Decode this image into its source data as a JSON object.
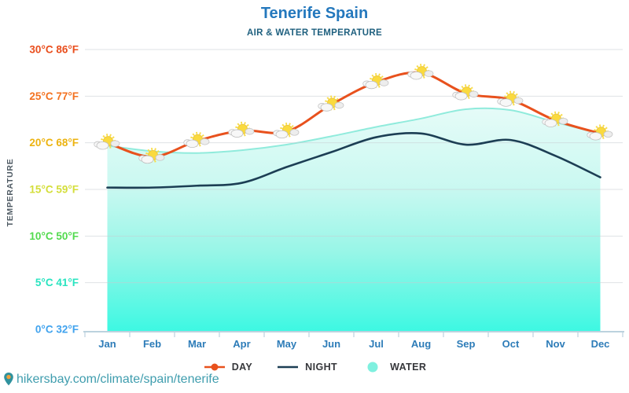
{
  "header": {
    "title": "Tenerife Spain",
    "subtitle": "AIR & WATER TEMPERATURE"
  },
  "y_axis": {
    "title": "TEMPERATURE"
  },
  "legend": {
    "items": [
      {
        "label": "DAY",
        "marker": "line-dot",
        "color": "#e8511d"
      },
      {
        "label": "NIGHT",
        "marker": "line",
        "color": "#1c3e54"
      },
      {
        "label": "WATER",
        "marker": "dot",
        "color": "#7ff0df"
      }
    ]
  },
  "footer": {
    "url": "hikersbay.com/climate/spain/tenerife"
  },
  "colors": {
    "title": "#2478bd",
    "subtitle": "#1f607f",
    "month_label": "#2d7cb8",
    "grid": "#c6ccd1",
    "axis": "#bcd2de",
    "water_edge": "#90ebdc",
    "water_gradient_top": "#e3fbf7",
    "water_gradient_bottom": "#2df8e0",
    "url": "#3f9dae",
    "pin": "#2f929e",
    "pin_dot": "#f0a13c",
    "legend_text": "#36373b",
    "y_axis_title": "#4e5a63",
    "day_dot": "#d8490f",
    "sun": "#fada3e",
    "sun_rays": "#f7dc4b",
    "cloud": "#f7f7f7"
  },
  "chart_data": {
    "type": "line",
    "title": "Tenerife Spain",
    "subtitle": "AIR & WATER TEMPERATURE",
    "categories": [
      "Jan",
      "Feb",
      "Mar",
      "Apr",
      "May",
      "Jun",
      "Jul",
      "Aug",
      "Sep",
      "Oct",
      "Nov",
      "Dec"
    ],
    "series": [
      {
        "name": "DAY",
        "type": "line",
        "color": "#e8511d",
        "point_icon": "sun-behind-cloud-icon",
        "values": [
          20.0,
          18.5,
          20.2,
          21.3,
          21.2,
          24.1,
          26.5,
          27.5,
          25.3,
          24.6,
          22.4,
          21.0
        ]
      },
      {
        "name": "NIGHT",
        "type": "line",
        "color": "#1c3e54",
        "values": [
          15.2,
          15.2,
          15.4,
          15.7,
          17.4,
          19.0,
          20.6,
          21.0,
          19.8,
          20.3,
          18.6,
          16.3
        ]
      },
      {
        "name": "WATER",
        "type": "area",
        "color": "#7ff0df",
        "values": [
          19.7,
          19.1,
          18.9,
          19.2,
          19.8,
          20.7,
          21.7,
          22.6,
          23.6,
          23.5,
          22.2,
          21.0
        ]
      }
    ],
    "unit": "°C",
    "ylim": [
      0,
      30
    ],
    "y_ticks": [
      {
        "c": 30,
        "label": "30°C 86°F",
        "color": "#e94e1d"
      },
      {
        "c": 25,
        "label": "25°C 77°F",
        "color": "#f3711f"
      },
      {
        "c": 20,
        "label": "20°C 68°F",
        "color": "#ecb310"
      },
      {
        "c": 15,
        "label": "15°C 59°F",
        "color": "#d4de3a"
      },
      {
        "c": 10,
        "label": "10°C 50°F",
        "color": "#52da4e"
      },
      {
        "c": 5,
        "label": "5°C 41°F",
        "color": "#29e4c0"
      },
      {
        "c": 0,
        "label": "0°C 32°F",
        "color": "#41a3ee"
      }
    ],
    "grid": true,
    "legend_position": "bottom"
  }
}
